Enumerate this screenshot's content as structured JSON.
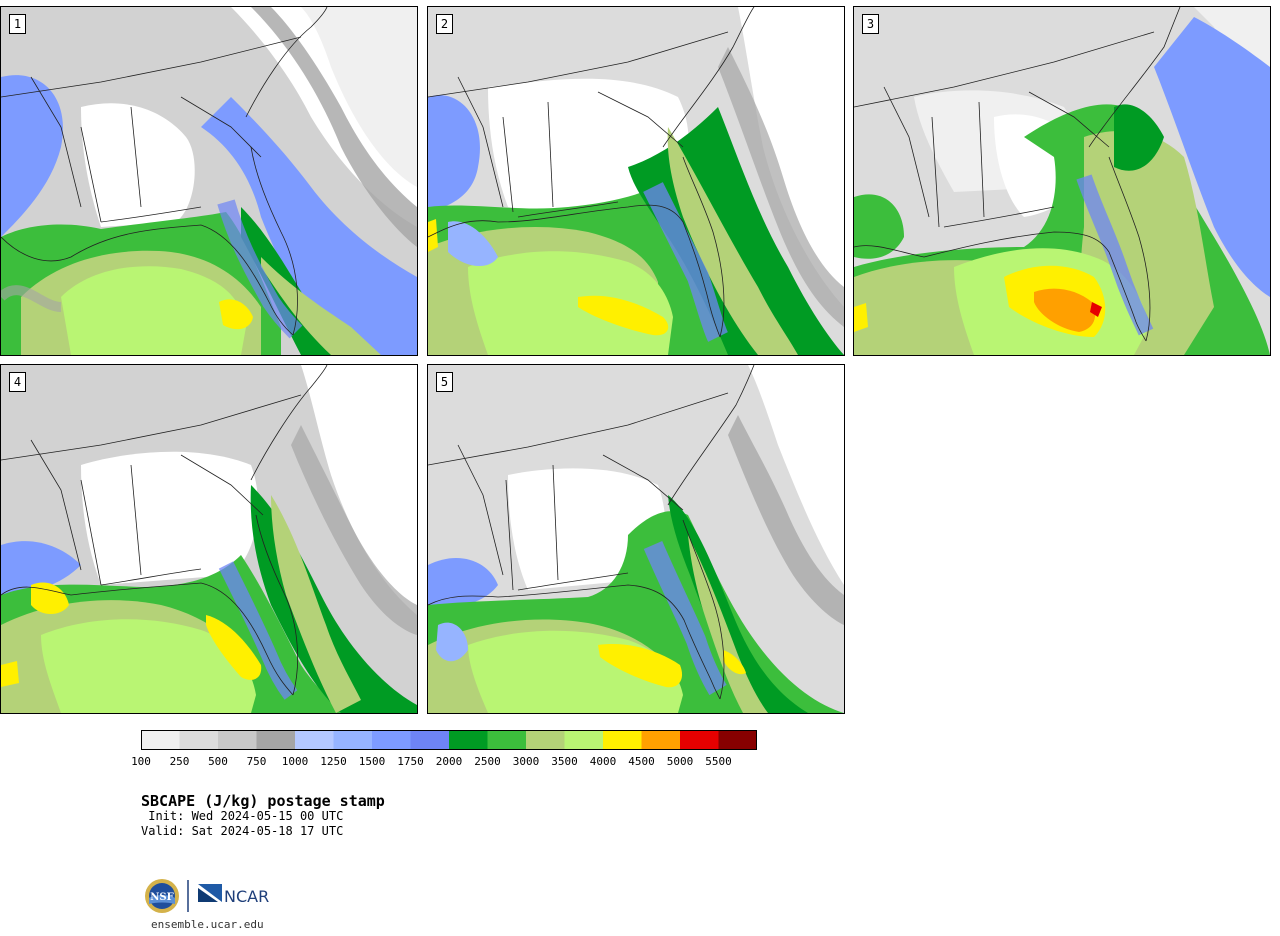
{
  "panels": [
    {
      "label": "1"
    },
    {
      "label": "2"
    },
    {
      "label": "3"
    },
    {
      "label": "4"
    },
    {
      "label": "5"
    }
  ],
  "colorbar": {
    "colors": [
      "#f0f0f0",
      "#dcdcdc",
      "#c8c8c8",
      "#a5a5a5",
      "#b4c8ff",
      "#96b4ff",
      "#7d9bff",
      "#6e84f5",
      "#009b23",
      "#3cbe3c",
      "#b4d278",
      "#b9f573",
      "#fff000",
      "#ffa000",
      "#e60000",
      "#870000"
    ],
    "tick_labels": [
      "100",
      "250",
      "500",
      "750",
      "1000",
      "1250",
      "1500",
      "1750",
      "2000",
      "2500",
      "3000",
      "3500",
      "4000",
      "4500",
      "5000",
      "5500"
    ]
  },
  "title": "SBCAPE (J/kg) postage stamp",
  "init": " Init: Wed 2024-05-15 00 UTC",
  "valid": "Valid: Sat 2024-05-18 17 UTC",
  "logos": {
    "nsf": "NSF",
    "ncar": "NCAR"
  },
  "site": "ensemble.ucar.edu"
}
